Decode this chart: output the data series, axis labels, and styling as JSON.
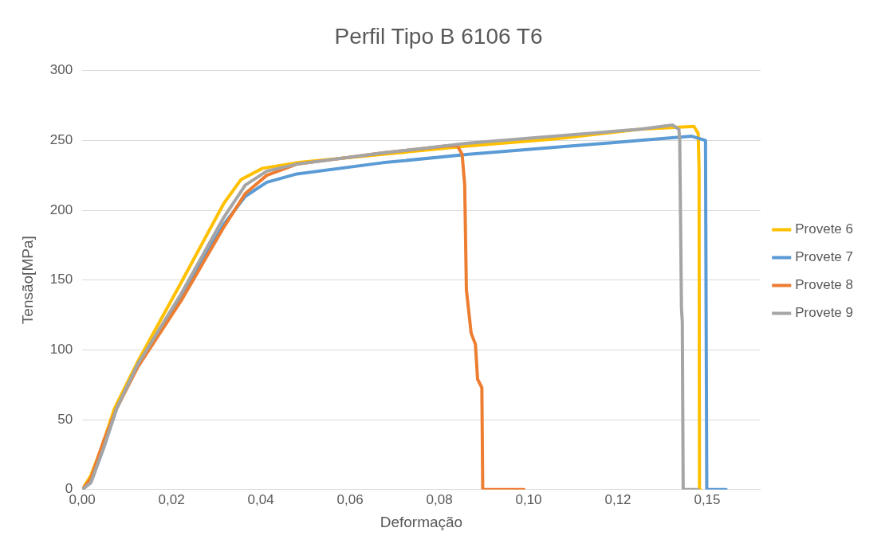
{
  "chart_data": {
    "type": "line",
    "title": "Perfil Tipo B 6106 T6",
    "xlabel": "Deformação",
    "ylabel": "Tensão[MPa]",
    "series": [
      {
        "name": "Provete 6",
        "color": "#ffc000",
        "x": [
          0,
          0.002,
          0.0045,
          0.0075,
          0.013,
          0.023,
          0.033,
          0.037,
          0.042,
          0.05,
          0.07,
          0.09,
          0.11,
          0.13,
          0.1425,
          0.1435,
          0.1437,
          0.1438,
          0.144
        ],
        "values": [
          0,
          10,
          30,
          58,
          92,
          148,
          205,
          222,
          230,
          234,
          240,
          246,
          251,
          258,
          260,
          255,
          230,
          0,
          0
        ]
      },
      {
        "name": "Provete 7",
        "color": "#5b9bd5",
        "x": [
          0,
          0.002,
          0.005,
          0.008,
          0.013,
          0.023,
          0.033,
          0.038,
          0.043,
          0.05,
          0.07,
          0.09,
          0.11,
          0.13,
          0.142,
          0.1452,
          0.1455,
          0.15
        ],
        "values": [
          0,
          5,
          30,
          58,
          90,
          138,
          190,
          210,
          220,
          226,
          234,
          240,
          245,
          250,
          253,
          250,
          0,
          0
        ]
      },
      {
        "name": "Provete 8",
        "color": "#ed7d31",
        "x": [
          0,
          0.002,
          0.005,
          0.008,
          0.013,
          0.023,
          0.033,
          0.038,
          0.043,
          0.05,
          0.07,
          0.085,
          0.0874,
          0.0885,
          0.0891,
          0.0895,
          0.0906,
          0.0916,
          0.0921,
          0.0931,
          0.0933,
          0.1029
        ],
        "values": [
          0,
          8,
          35,
          58,
          88,
          135,
          188,
          212,
          225,
          233,
          241,
          246,
          246,
          240,
          218,
          143,
          112,
          104,
          79,
          73,
          0,
          0
        ]
      },
      {
        "name": "Provete 9",
        "color": "#a5a5a5",
        "x": [
          0,
          0.002,
          0.005,
          0.008,
          0.013,
          0.023,
          0.033,
          0.038,
          0.043,
          0.05,
          0.07,
          0.09,
          0.11,
          0.13,
          0.1375,
          0.139,
          0.1392,
          0.1396,
          0.1398,
          0.14,
          0.1435
        ],
        "values": [
          0,
          5,
          30,
          58,
          90,
          140,
          195,
          218,
          228,
          233,
          241,
          248,
          253,
          258,
          261,
          258,
          250,
          130,
          120,
          0,
          0
        ]
      }
    ],
    "xlim": [
      0,
      0.158
    ],
    "xticks": [
      {
        "value": 0,
        "label": "0,00"
      },
      {
        "value": 0.0208,
        "label": "0,02"
      },
      {
        "value": 0.0416,
        "label": "0,04"
      },
      {
        "value": 0.0624,
        "label": "0,06"
      },
      {
        "value": 0.0832,
        "label": "0,08"
      },
      {
        "value": 0.104,
        "label": "0,10"
      },
      {
        "value": 0.1248,
        "label": "0,12"
      },
      {
        "value": 0.1456,
        "label": "0,15"
      }
    ],
    "ylim": [
      0,
      300
    ],
    "yticks": [
      0,
      50,
      100,
      150,
      200,
      250,
      300
    ],
    "grid": "y",
    "legend": "right",
    "marker": "none",
    "line_style": "solid"
  }
}
